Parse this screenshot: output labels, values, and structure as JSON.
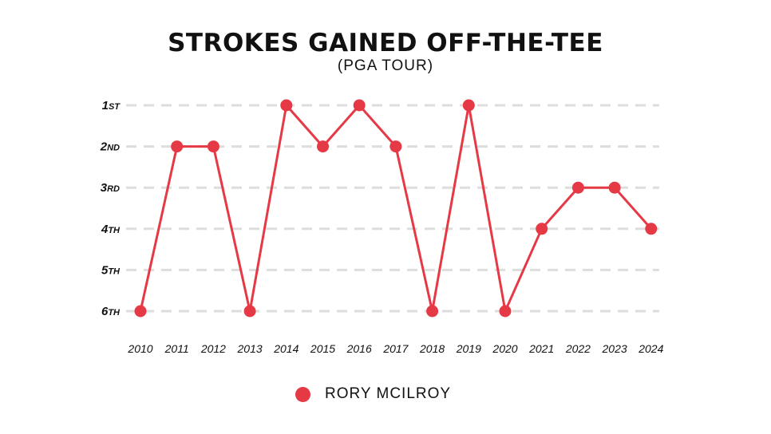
{
  "title": "STROKES GAINED OFF-THE-TEE",
  "subtitle": "(PGA TOUR)",
  "colors": {
    "series": "#e63946",
    "grid": "#dddddd",
    "text": "#111111"
  },
  "chart_data": {
    "type": "line",
    "title": "STROKES GAINED OFF-THE-TEE",
    "subtitle": "(PGA TOUR)",
    "x": [
      "2010",
      "2011",
      "2012",
      "2013",
      "2014",
      "2015",
      "2016",
      "2017",
      "2018",
      "2019",
      "2020",
      "2021",
      "2022",
      "2023",
      "2024"
    ],
    "y_ticks": [
      {
        "num": "1",
        "suffix": "ST",
        "value": 1
      },
      {
        "num": "2",
        "suffix": "ND",
        "value": 2
      },
      {
        "num": "3",
        "suffix": "RD",
        "value": 3
      },
      {
        "num": "4",
        "suffix": "TH",
        "value": 4
      },
      {
        "num": "5",
        "suffix": "TH",
        "value": 5
      },
      {
        "num": "6",
        "suffix": "TH",
        "value": 6
      }
    ],
    "ylim": [
      1,
      6
    ],
    "y_inverted": true,
    "grid": "horizontal dashed",
    "legend_position": "bottom",
    "series": [
      {
        "name": "RORY MCILROY",
        "values": [
          6,
          2,
          2,
          6,
          1,
          2,
          1,
          2,
          6,
          1,
          6,
          4,
          3,
          3,
          4
        ]
      }
    ]
  },
  "legend": {
    "label": "RORY MCILROY"
  }
}
